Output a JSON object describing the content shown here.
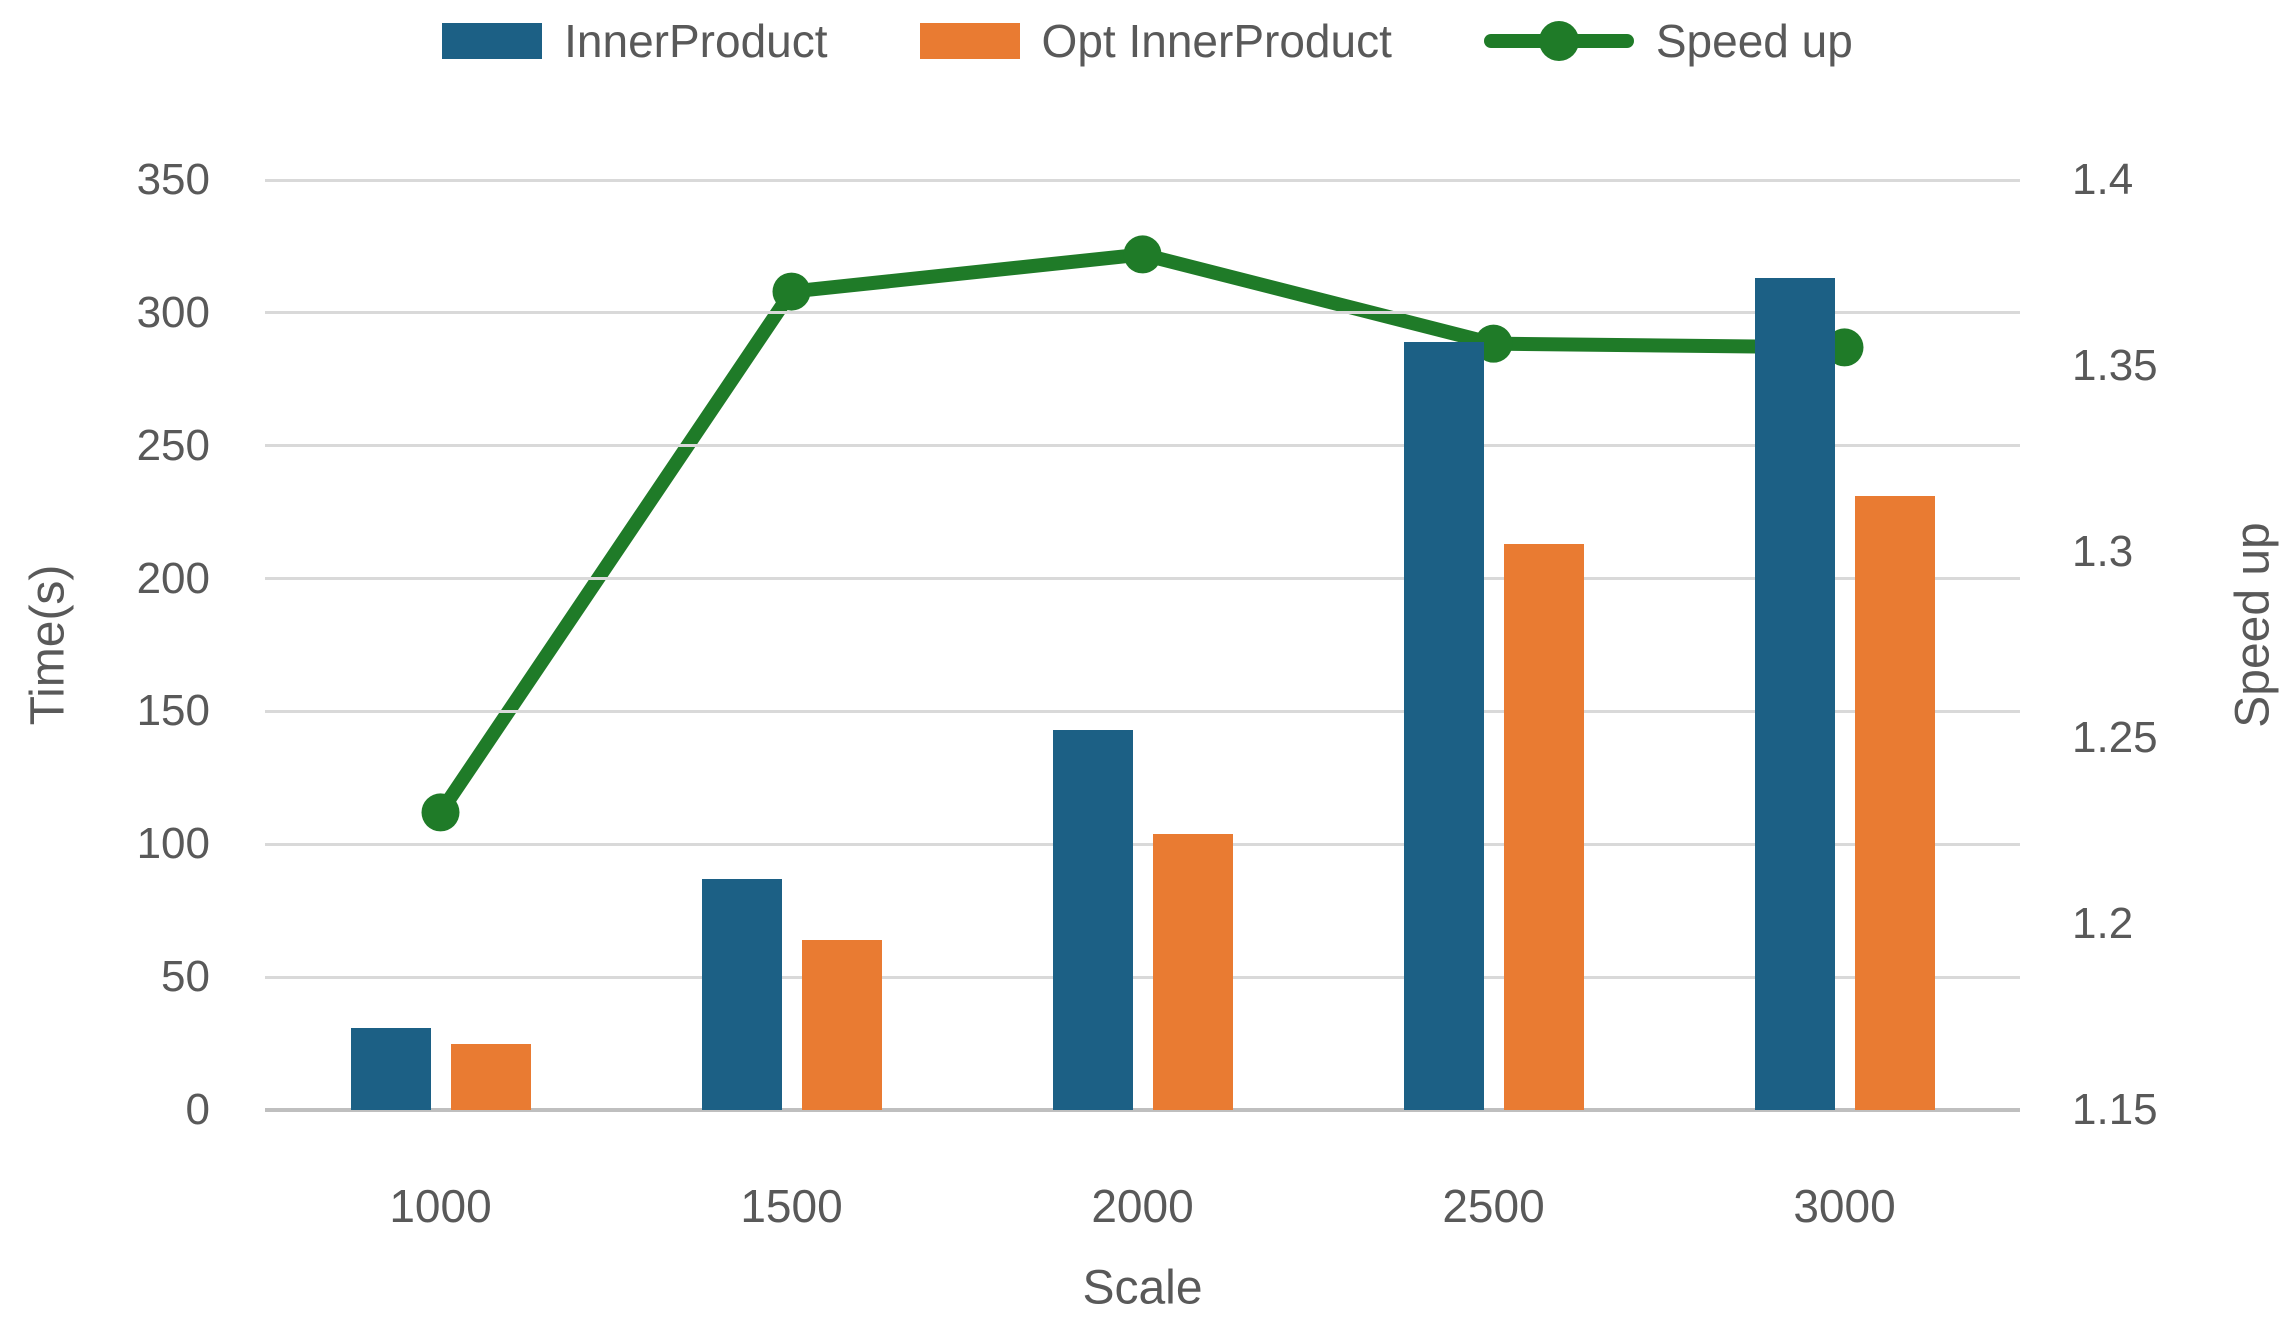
{
  "chart_data": {
    "type": "combo-bar-line",
    "title": "",
    "categories": [
      "1000",
      "1500",
      "2000",
      "2500",
      "3000"
    ],
    "series": [
      {
        "name": "InnerProduct",
        "type": "bar",
        "axis": "left",
        "color": "#1c6085",
        "values": [
          31,
          87,
          143,
          289,
          313
        ]
      },
      {
        "name": "Opt InnerProduct",
        "type": "bar",
        "axis": "left",
        "color": "#e97b32",
        "values": [
          25,
          64,
          104,
          213,
          231
        ]
      },
      {
        "name": "Speed up",
        "type": "line",
        "axis": "right",
        "color": "#1f7b28",
        "values": [
          1.23,
          1.37,
          1.38,
          1.356,
          1.355
        ]
      }
    ],
    "xlabel": "Scale",
    "ylabel_left": "Time(s)",
    "ylabel_right": "Speed up",
    "left_axis": {
      "min": 0,
      "max": 350,
      "step": 50,
      "ticks": [
        "0",
        "50",
        "100",
        "150",
        "200",
        "250",
        "300",
        "350"
      ]
    },
    "right_axis": {
      "min": 1.15,
      "max": 1.4,
      "step": 0.05,
      "ticks": [
        "1.15",
        "1.2",
        "1.25",
        "1.3",
        "1.35",
        "1.4"
      ]
    },
    "grid": true,
    "legend_position": "top"
  },
  "colors": {
    "text": "#595959",
    "gridline": "#d9d9d9",
    "axis_line": "#bfbfbf",
    "background": "#ffffff"
  }
}
